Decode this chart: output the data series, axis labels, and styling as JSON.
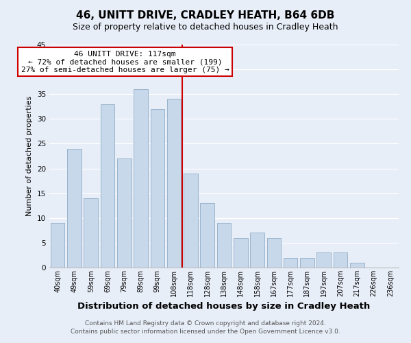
{
  "title": "46, UNITT DRIVE, CRADLEY HEATH, B64 6DB",
  "subtitle": "Size of property relative to detached houses in Cradley Heath",
  "xlabel": "Distribution of detached houses by size in Cradley Heath",
  "ylabel": "Number of detached properties",
  "footer_line1": "Contains HM Land Registry data © Crown copyright and database right 2024.",
  "footer_line2": "Contains public sector information licensed under the Open Government Licence v3.0.",
  "bin_labels": [
    "40sqm",
    "49sqm",
    "59sqm",
    "69sqm",
    "79sqm",
    "89sqm",
    "99sqm",
    "108sqm",
    "118sqm",
    "128sqm",
    "138sqm",
    "148sqm",
    "158sqm",
    "167sqm",
    "177sqm",
    "187sqm",
    "197sqm",
    "207sqm",
    "217sqm",
    "226sqm",
    "236sqm"
  ],
  "bar_values": [
    9,
    24,
    14,
    33,
    22,
    36,
    32,
    34,
    19,
    13,
    9,
    6,
    7,
    6,
    2,
    2,
    3,
    3,
    1,
    0,
    0
  ],
  "bar_color": "#c8d8eb",
  "bar_edge_color": "#9ab4cc",
  "vline_color": "#cc0000",
  "annotation_title": "46 UNITT DRIVE: 117sqm",
  "annotation_line2": "← 72% of detached houses are smaller (199)",
  "annotation_line3": "27% of semi-detached houses are larger (75) →",
  "annotation_box_facecolor": "#ffffff",
  "annotation_box_edgecolor": "#cc0000",
  "ylim": [
    0,
    45
  ],
  "yticks": [
    0,
    5,
    10,
    15,
    20,
    25,
    30,
    35,
    40,
    45
  ],
  "background_color": "#e8eef8",
  "plot_background": "#e8eef8",
  "grid_color": "#ffffff",
  "title_fontsize": 11,
  "subtitle_fontsize": 9,
  "xlabel_fontsize": 9.5,
  "ylabel_fontsize": 8,
  "footer_fontsize": 6.5
}
